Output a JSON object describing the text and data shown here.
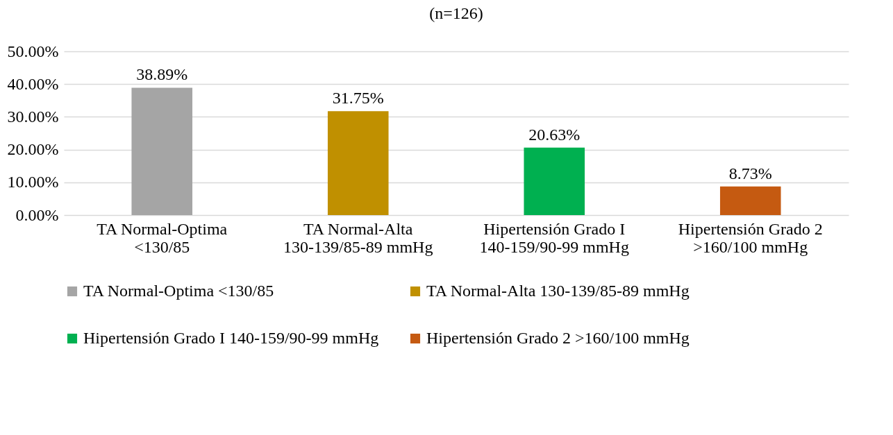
{
  "chart_data": {
    "type": "bar",
    "title": "(n=126)",
    "categories": [
      "TA Normal-Optima <130/85",
      "TA Normal-Alta 130-139/85-89 mmHg",
      "Hipertensión Grado I 140-159/90-99 mmHg",
      "Hipertensión Grado 2 >160/100 mmHg"
    ],
    "series": [
      {
        "name": "TA Normal-Optima <130/85",
        "color": "#a5a5a5",
        "values": [
          38.89,
          null,
          null,
          null
        ],
        "value_labels": [
          "38.89%",
          null,
          null,
          null
        ]
      },
      {
        "name": "TA Normal-Alta 130-139/85-89 mmHg",
        "color": "#c09000",
        "values": [
          null,
          31.75,
          null,
          null
        ],
        "value_labels": [
          null,
          "31.75%",
          null,
          null
        ]
      },
      {
        "name": "Hipertensión Grado I 140-159/90-99 mmHg",
        "color": "#00b050",
        "values": [
          null,
          null,
          20.63,
          null
        ],
        "value_labels": [
          null,
          null,
          "20.63%",
          null
        ]
      },
      {
        "name": "Hipertensión Grado 2 >160/100 mmHg",
        "color": "#c55a11",
        "values": [
          null,
          null,
          null,
          8.73
        ],
        "value_labels": [
          null,
          null,
          null,
          "8.73%"
        ]
      }
    ],
    "ylim": [
      0,
      50
    ],
    "yticks": [
      {
        "value": 0,
        "label": "0.00%"
      },
      {
        "value": 10,
        "label": "10.00%"
      },
      {
        "value": 20,
        "label": "20.00%"
      },
      {
        "value": 30,
        "label": "30.00%"
      },
      {
        "value": 40,
        "label": "40.00%"
      },
      {
        "value": 50,
        "label": "50.00%"
      }
    ],
    "grid": "y",
    "legend": "bottom"
  }
}
